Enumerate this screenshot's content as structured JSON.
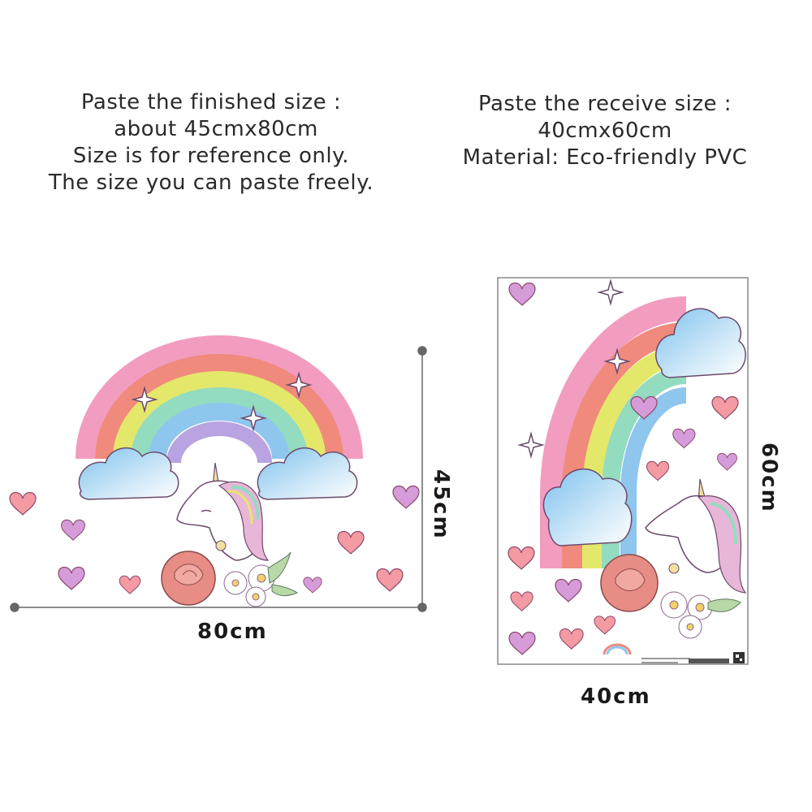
{
  "left_caption": {
    "lines": [
      "Paste the finished size :",
      "about 45cmx80cm",
      "Size is for reference only.",
      "The size you can paste freely."
    ]
  },
  "right_caption": {
    "lines": [
      "Paste the receive size :",
      "40cmx60cm",
      "Material: Eco-friendly PVC"
    ]
  },
  "dimensions": {
    "finished_width": "80cm",
    "finished_height": "45cm",
    "sheet_width": "40cm",
    "sheet_height": "60cm"
  },
  "colors": {
    "rainbow": [
      "#f29cc0",
      "#f08a7c",
      "#e4e86a",
      "#93dcc0",
      "#8fc6ee",
      "#b9a3e0"
    ],
    "cloud": "#a9d6f2",
    "heart": "#f49aa3",
    "heart_alt": "#d69bd9",
    "rose": "#e88c86"
  },
  "icons": [
    "rainbow-icon",
    "cloud-icon",
    "unicorn-icon",
    "rose-icon",
    "heart-icon",
    "sparkle-icon"
  ]
}
